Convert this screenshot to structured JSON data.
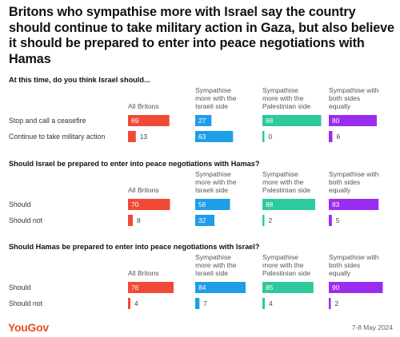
{
  "title": "Britons who sympathise more with Israel say the country should continue to take military action in Gaza, but also believe it should be prepared to enter into peace negotiations with Hamas",
  "brand": "YouGov",
  "date": "7-8 May 2024",
  "colors": {
    "all_britons": "#f04a37",
    "israeli_side": "#1e9ee6",
    "palestinian_side": "#2ec99d",
    "both_sides": "#9a2cf0"
  },
  "chart_data": {
    "type": "bar",
    "columns": [
      "All Britons",
      "Sympathise more with the Israeli side",
      "Sympathise more with the Palestinian side",
      "Sympathise with both sides equally"
    ],
    "panels": [
      {
        "question": "At this time, do you think Israel should...",
        "rows": [
          {
            "label": "Stop and call a ceasefire",
            "values": [
              69,
              27,
              98,
              80
            ]
          },
          {
            "label": "Continue to take military action",
            "values": [
              13,
              63,
              0,
              6
            ]
          }
        ]
      },
      {
        "question": "Should Israel be prepared to enter into peace negotiations with Hamas?",
        "rows": [
          {
            "label": "Should",
            "values": [
              70,
              58,
              88,
              83
            ]
          },
          {
            "label": "Should not",
            "values": [
              8,
              32,
              2,
              5
            ]
          }
        ]
      },
      {
        "question": "Should Hamas be prepared to enter into peace negotiations with Israel?",
        "rows": [
          {
            "label": "Should",
            "values": [
              76,
              84,
              85,
              90
            ]
          },
          {
            "label": "Should not",
            "values": [
              4,
              7,
              4,
              2
            ]
          }
        ]
      }
    ]
  }
}
